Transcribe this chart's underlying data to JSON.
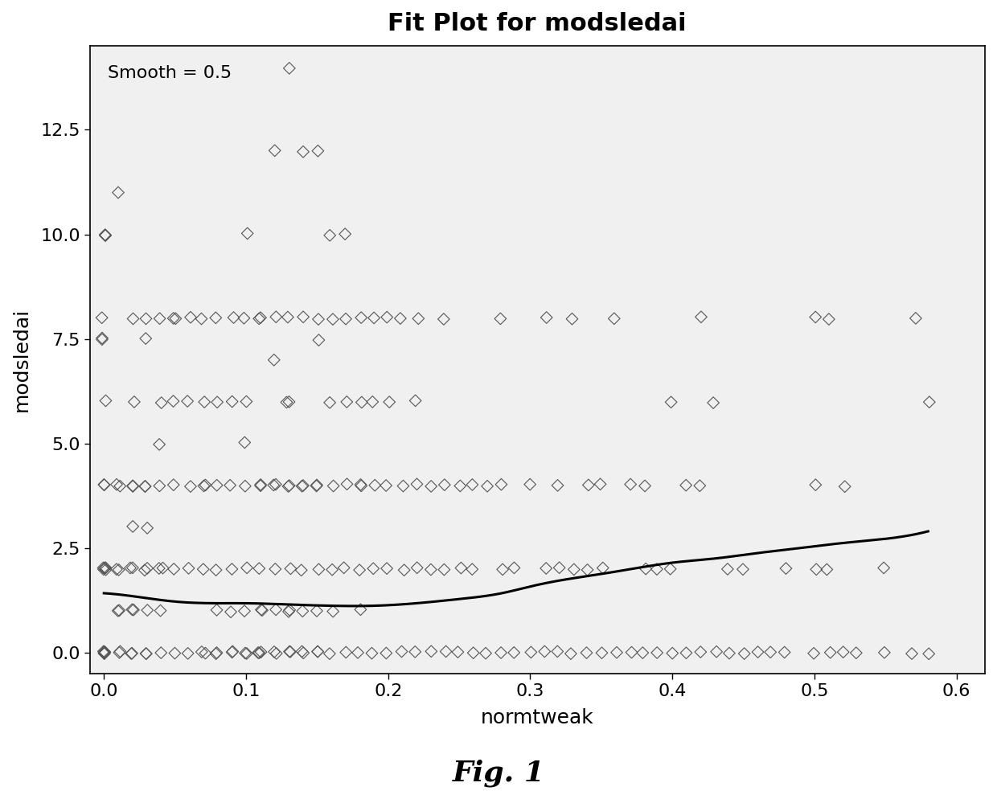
{
  "title": "Fit Plot for modsledai",
  "xlabel": "normtweak",
  "ylabel": "modsledai",
  "annotation": "Smooth = 0.5",
  "fig_label": "Fig. 1",
  "xlim": [
    -0.01,
    0.62
  ],
  "ylim": [
    -0.5,
    14.5
  ],
  "xticks": [
    0.0,
    0.1,
    0.2,
    0.3,
    0.4,
    0.5,
    0.6
  ],
  "yticks": [
    0.0,
    2.5,
    5.0,
    7.5,
    10.0,
    12.5
  ],
  "scatter_x": [
    0.0,
    0.0,
    0.0,
    0.0,
    0.0,
    0.0,
    0.0,
    0.0,
    0.0,
    0.0,
    0.0,
    0.0,
    0.0,
    0.0,
    0.0,
    0.0,
    0.0,
    0.0,
    0.0,
    0.0,
    0.01,
    0.01,
    0.01,
    0.01,
    0.01,
    0.01,
    0.01,
    0.01,
    0.01,
    0.02,
    0.02,
    0.02,
    0.02,
    0.02,
    0.02,
    0.02,
    0.02,
    0.02,
    0.02,
    0.02,
    0.03,
    0.03,
    0.03,
    0.03,
    0.03,
    0.03,
    0.03,
    0.03,
    0.03,
    0.03,
    0.04,
    0.04,
    0.04,
    0.04,
    0.04,
    0.04,
    0.04,
    0.04,
    0.05,
    0.05,
    0.05,
    0.05,
    0.05,
    0.05,
    0.06,
    0.06,
    0.06,
    0.06,
    0.06,
    0.07,
    0.07,
    0.07,
    0.07,
    0.07,
    0.07,
    0.07,
    0.08,
    0.08,
    0.08,
    0.08,
    0.08,
    0.08,
    0.08,
    0.09,
    0.09,
    0.09,
    0.09,
    0.09,
    0.09,
    0.09,
    0.1,
    0.1,
    0.1,
    0.1,
    0.1,
    0.1,
    0.1,
    0.1,
    0.1,
    0.11,
    0.11,
    0.11,
    0.11,
    0.11,
    0.11,
    0.11,
    0.11,
    0.11,
    0.11,
    0.12,
    0.12,
    0.12,
    0.12,
    0.12,
    0.12,
    0.12,
    0.12,
    0.12,
    0.13,
    0.13,
    0.13,
    0.13,
    0.13,
    0.13,
    0.13,
    0.13,
    0.13,
    0.13,
    0.13,
    0.14,
    0.14,
    0.14,
    0.14,
    0.14,
    0.14,
    0.14,
    0.14,
    0.15,
    0.15,
    0.15,
    0.15,
    0.15,
    0.15,
    0.15,
    0.15,
    0.15,
    0.16,
    0.16,
    0.16,
    0.16,
    0.16,
    0.16,
    0.16,
    0.17,
    0.17,
    0.17,
    0.17,
    0.17,
    0.17,
    0.18,
    0.18,
    0.18,
    0.18,
    0.18,
    0.18,
    0.18,
    0.19,
    0.19,
    0.19,
    0.19,
    0.19,
    0.2,
    0.2,
    0.2,
    0.2,
    0.2,
    0.21,
    0.21,
    0.21,
    0.21,
    0.22,
    0.22,
    0.22,
    0.22,
    0.22,
    0.23,
    0.23,
    0.23,
    0.24,
    0.24,
    0.24,
    0.24,
    0.25,
    0.25,
    0.25,
    0.26,
    0.26,
    0.26,
    0.27,
    0.27,
    0.28,
    0.28,
    0.28,
    0.28,
    0.29,
    0.29,
    0.3,
    0.3,
    0.31,
    0.31,
    0.31,
    0.32,
    0.32,
    0.32,
    0.33,
    0.33,
    0.33,
    0.34,
    0.34,
    0.34,
    0.35,
    0.35,
    0.35,
    0.36,
    0.36,
    0.37,
    0.37,
    0.38,
    0.38,
    0.38,
    0.39,
    0.39,
    0.4,
    0.4,
    0.4,
    0.41,
    0.41,
    0.42,
    0.42,
    0.42,
    0.43,
    0.43,
    0.44,
    0.44,
    0.45,
    0.45,
    0.46,
    0.47,
    0.48,
    0.48,
    0.5,
    0.5,
    0.5,
    0.5,
    0.51,
    0.51,
    0.51,
    0.52,
    0.52,
    0.53,
    0.55,
    0.55,
    0.57,
    0.57,
    0.58,
    0.58
  ],
  "scatter_y": [
    0.0,
    0.0,
    0.0,
    0.0,
    0.0,
    0.0,
    2.0,
    2.0,
    2.0,
    2.0,
    2.0,
    4.0,
    4.0,
    6.0,
    7.5,
    7.5,
    8.0,
    10.0,
    10.0,
    10.0,
    0.0,
    0.0,
    1.0,
    1.0,
    2.0,
    2.0,
    4.0,
    4.0,
    11.0,
    0.0,
    0.0,
    1.0,
    1.0,
    2.0,
    2.0,
    3.0,
    4.0,
    4.0,
    6.0,
    8.0,
    0.0,
    0.0,
    1.0,
    2.0,
    2.0,
    3.0,
    4.0,
    4.0,
    7.5,
    8.0,
    0.0,
    1.0,
    2.0,
    2.0,
    4.0,
    5.0,
    6.0,
    8.0,
    0.0,
    2.0,
    4.0,
    6.0,
    8.0,
    8.0,
    0.0,
    2.0,
    4.0,
    6.0,
    8.0,
    0.0,
    0.0,
    2.0,
    4.0,
    4.0,
    6.0,
    8.0,
    0.0,
    0.0,
    1.0,
    2.0,
    4.0,
    6.0,
    8.0,
    0.0,
    0.0,
    1.0,
    2.0,
    4.0,
    6.0,
    8.0,
    0.0,
    0.0,
    1.0,
    2.0,
    4.0,
    5.0,
    6.0,
    8.0,
    10.0,
    0.0,
    0.0,
    0.0,
    1.0,
    1.0,
    2.0,
    4.0,
    4.0,
    8.0,
    8.0,
    0.0,
    0.0,
    1.0,
    2.0,
    4.0,
    4.0,
    7.0,
    8.0,
    12.0,
    0.0,
    0.0,
    1.0,
    1.0,
    2.0,
    4.0,
    4.0,
    6.0,
    6.0,
    8.0,
    14.0,
    0.0,
    0.0,
    1.0,
    2.0,
    4.0,
    4.0,
    8.0,
    12.0,
    0.0,
    0.0,
    1.0,
    2.0,
    4.0,
    4.0,
    7.5,
    8.0,
    12.0,
    0.0,
    1.0,
    2.0,
    4.0,
    6.0,
    8.0,
    10.0,
    0.0,
    2.0,
    4.0,
    6.0,
    8.0,
    10.0,
    0.0,
    1.0,
    2.0,
    4.0,
    4.0,
    6.0,
    8.0,
    0.0,
    2.0,
    4.0,
    6.0,
    8.0,
    0.0,
    2.0,
    4.0,
    6.0,
    8.0,
    0.0,
    2.0,
    4.0,
    8.0,
    0.0,
    2.0,
    4.0,
    6.0,
    8.0,
    0.0,
    2.0,
    4.0,
    0.0,
    2.0,
    4.0,
    8.0,
    0.0,
    2.0,
    4.0,
    0.0,
    2.0,
    4.0,
    0.0,
    4.0,
    0.0,
    2.0,
    4.0,
    8.0,
    0.0,
    2.0,
    0.0,
    4.0,
    0.0,
    2.0,
    8.0,
    0.0,
    2.0,
    4.0,
    0.0,
    2.0,
    8.0,
    0.0,
    2.0,
    4.0,
    0.0,
    2.0,
    4.0,
    0.0,
    8.0,
    0.0,
    4.0,
    0.0,
    2.0,
    4.0,
    0.0,
    2.0,
    0.0,
    2.0,
    6.0,
    0.0,
    4.0,
    0.0,
    4.0,
    8.0,
    0.0,
    6.0,
    0.0,
    2.0,
    0.0,
    2.0,
    0.0,
    0.0,
    0.0,
    2.0,
    0.0,
    2.0,
    4.0,
    8.0,
    0.0,
    2.0,
    8.0,
    0.0,
    4.0,
    0.0,
    0.0,
    2.0,
    0.0,
    8.0,
    0.0,
    6.0
  ],
  "smooth_x": [
    0.0,
    0.02,
    0.05,
    0.08,
    0.1,
    0.13,
    0.16,
    0.19,
    0.22,
    0.25,
    0.28,
    0.3,
    0.32,
    0.35,
    0.38,
    0.4,
    0.43,
    0.46,
    0.49,
    0.52,
    0.55,
    0.58
  ],
  "smooth_y": [
    1.42,
    1.35,
    1.22,
    1.18,
    1.18,
    1.15,
    1.12,
    1.12,
    1.18,
    1.28,
    1.42,
    1.58,
    1.72,
    1.88,
    2.05,
    2.15,
    2.25,
    2.38,
    2.5,
    2.62,
    2.72,
    2.9
  ],
  "scatter_color": "#555555",
  "line_color": "#000000",
  "bg_color": "#ffffff",
  "plot_bg_color": "#f0f0f0",
  "marker_size": 55,
  "title_fontsize": 22,
  "label_fontsize": 18,
  "tick_fontsize": 16,
  "annotation_fontsize": 16,
  "fig_label_fontsize": 26
}
